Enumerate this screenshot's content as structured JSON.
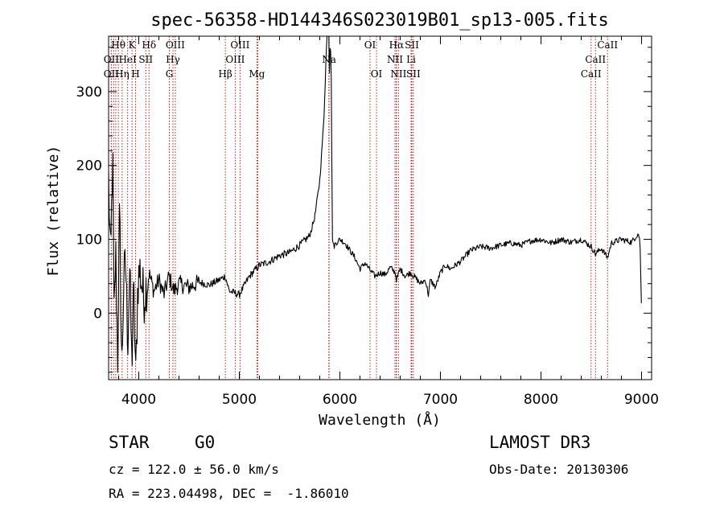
{
  "chart_data": {
    "type": "line",
    "title": "spec-56358-HD144346S023019B01_sp13-005.fits",
    "xlabel": "Wavelength (Å)",
    "ylabel": "Flux (relative)",
    "xlim": [
      3700,
      9100
    ],
    "ylim": [
      -90,
      375
    ],
    "xticks": [
      4000,
      5000,
      6000,
      7000,
      8000,
      9000
    ],
    "yticks": [
      0,
      100,
      200,
      300
    ],
    "x_minor_step": 200,
    "y_minor_step": 20,
    "line_color": "#000000",
    "marker_color": "#b22222",
    "spectrum": {
      "x": [
        3700,
        3720,
        3740,
        3755,
        3770,
        3790,
        3810,
        3830,
        3850,
        3870,
        3890,
        3910,
        3930,
        3950,
        3970,
        3990,
        4010,
        4050,
        4100,
        4150,
        4200,
        4250,
        4300,
        4350,
        4400,
        4500,
        4600,
        4700,
        4800,
        4860,
        4900,
        5000,
        5100,
        5200,
        5300,
        5400,
        5500,
        5600,
        5700,
        5750,
        5800,
        5840,
        5870,
        5890,
        5895,
        5905,
        5915,
        5925,
        5940,
        5960,
        6000,
        6050,
        6100,
        6150,
        6200,
        6250,
        6300,
        6350,
        6400,
        6450,
        6500,
        6550,
        6563,
        6600,
        6650,
        6700,
        6750,
        6800,
        6850,
        6880,
        6900,
        6950,
        7000,
        7050,
        7100,
        7200,
        7300,
        7400,
        7500,
        7600,
        7700,
        7800,
        7900,
        8000,
        8100,
        8200,
        8300,
        8400,
        8500,
        8542,
        8600,
        8662,
        8700,
        8800,
        8900,
        8950,
        8970,
        8985,
        9000
      ],
      "y": [
        180,
        60,
        220,
        -20,
        90,
        -60,
        140,
        -80,
        40,
        70,
        -40,
        60,
        -70,
        30,
        -90,
        40,
        60,
        20,
        55,
        30,
        45,
        25,
        50,
        30,
        40,
        35,
        42,
        38,
        45,
        50,
        30,
        25,
        50,
        65,
        70,
        78,
        82,
        92,
        105,
        130,
        180,
        260,
        375,
        375,
        320,
        375,
        310,
        100,
        90,
        95,
        100,
        95,
        85,
        75,
        60,
        68,
        58,
        50,
        55,
        52,
        62,
        55,
        45,
        60,
        50,
        55,
        48,
        40,
        45,
        25,
        45,
        35,
        55,
        65,
        60,
        70,
        85,
        90,
        88,
        92,
        95,
        92,
        98,
        100,
        95,
        100,
        96,
        100,
        90,
        80,
        88,
        75,
        95,
        100,
        96,
        105,
        108,
        95,
        0
      ]
    },
    "lines": [
      {
        "label": "Hθ",
        "x": 3797,
        "row": 0
      },
      {
        "label": "OII",
        "x": 3727,
        "row": 1
      },
      {
        "label": "OII",
        "x": 3727,
        "row": 2
      },
      {
        "label": "Hη",
        "x": 3835,
        "row": 2
      },
      {
        "label": "HeI",
        "x": 3889,
        "row": 1
      },
      {
        "label": "K",
        "x": 3933,
        "row": 0
      },
      {
        "label": "SII",
        "x": 4070,
        "row": 1
      },
      {
        "label": "H",
        "x": 3968,
        "row": 2
      },
      {
        "label": "Hδ",
        "x": 4102,
        "row": 0
      },
      {
        "label": "OIII",
        "x": 4363,
        "row": 0
      },
      {
        "label": "Hγ",
        "x": 4340,
        "row": 1
      },
      {
        "label": "G",
        "x": 4304,
        "row": 2
      },
      {
        "label": "Hβ",
        "x": 4861,
        "row": 2
      },
      {
        "label": "OIII",
        "x": 5007,
        "row": 0
      },
      {
        "label": "OIII",
        "x": 4959,
        "row": 1
      },
      {
        "label": "Mg",
        "x": 5175,
        "row": 2
      },
      {
        "label": "Na",
        "x": 5893,
        "row": 1
      },
      {
        "label": "OI",
        "x": 6300,
        "row": 0
      },
      {
        "label": "OI",
        "x": 6364,
        "row": 2
      },
      {
        "label": "Hα",
        "x": 6563,
        "row": 0
      },
      {
        "label": "SII",
        "x": 6716,
        "row": 0
      },
      {
        "label": "NII",
        "x": 6548,
        "row": 1
      },
      {
        "label": "Li",
        "x": 6708,
        "row": 1
      },
      {
        "label": "NII",
        "x": 6583,
        "row": 2
      },
      {
        "label": "SII",
        "x": 6731,
        "row": 2
      },
      {
        "label": "CaII",
        "x": 8662,
        "row": 0
      },
      {
        "label": "CaII",
        "x": 8542,
        "row": 1
      },
      {
        "label": "CaII",
        "x": 8498,
        "row": 2
      }
    ],
    "extra_marker_x": [
      3750,
      3771,
      5184,
      5890,
      6560
    ]
  },
  "info": {
    "class": "STAR",
    "subclass": "G0",
    "survey": "LAMOST DR3",
    "cz": "cz = 122.0 ± 56.0 km/s",
    "obs_date": "Obs-Date: 20130306",
    "coords": "RA = 223.04498, DEC =  -1.86010"
  }
}
